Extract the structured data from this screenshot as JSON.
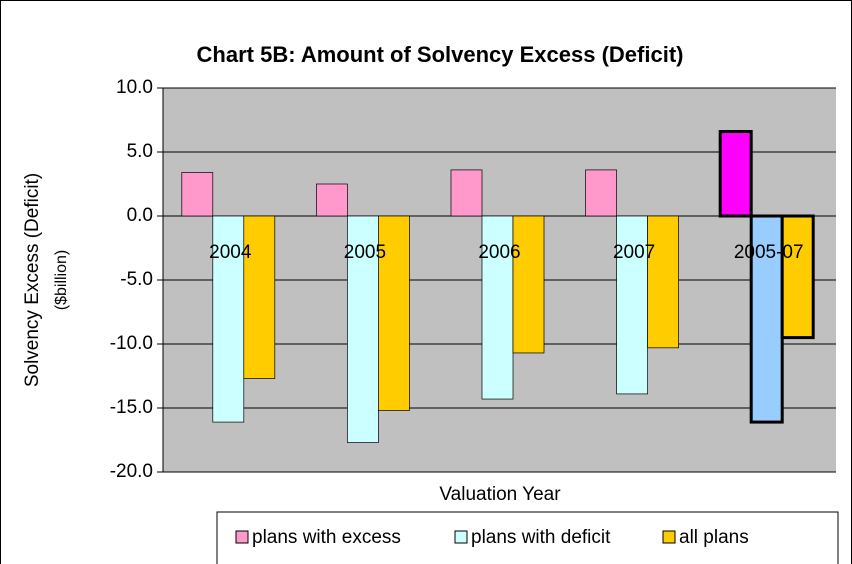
{
  "chart_data": {
    "type": "bar",
    "title": "Chart 5B: Amount of Solvency Excess (Deficit)",
    "xlabel": "Valuation Year",
    "ylabel": "Solvency Excess (Deficit)",
    "ylabel_unit": "($billion)",
    "categories": [
      "2004",
      "2005",
      "2006",
      "2007",
      "2005-07"
    ],
    "series": [
      {
        "name": "plans with excess",
        "color": "#ff99cc",
        "highlight_color": "#ff00ff",
        "values": [
          3.4,
          2.5,
          3.6,
          3.6,
          6.6
        ]
      },
      {
        "name": "plans with deficit",
        "color": "#ccffff",
        "highlight_color": "#99ccff",
        "values": [
          -16.1,
          -17.7,
          -14.3,
          -13.9,
          -16.1
        ]
      },
      {
        "name": "all plans",
        "color": "#ffcc00",
        "highlight_color": "#ffcc00",
        "values": [
          -12.7,
          -15.2,
          -10.7,
          -10.3,
          -9.5
        ]
      }
    ],
    "highlight_index": 4,
    "ylim": [
      -20,
      10
    ],
    "yticks": [
      {
        "value": -20,
        "label": "-20.0"
      },
      {
        "value": -15,
        "label": "-15.0"
      },
      {
        "value": -10,
        "label": "-10.0"
      },
      {
        "value": -5,
        "label": "-5.0"
      },
      {
        "value": 0,
        "label": "0.0"
      },
      {
        "value": 5,
        "label": "5.0"
      },
      {
        "value": 10,
        "label": "10.0"
      }
    ],
    "grid": true,
    "legend": "bottom"
  }
}
